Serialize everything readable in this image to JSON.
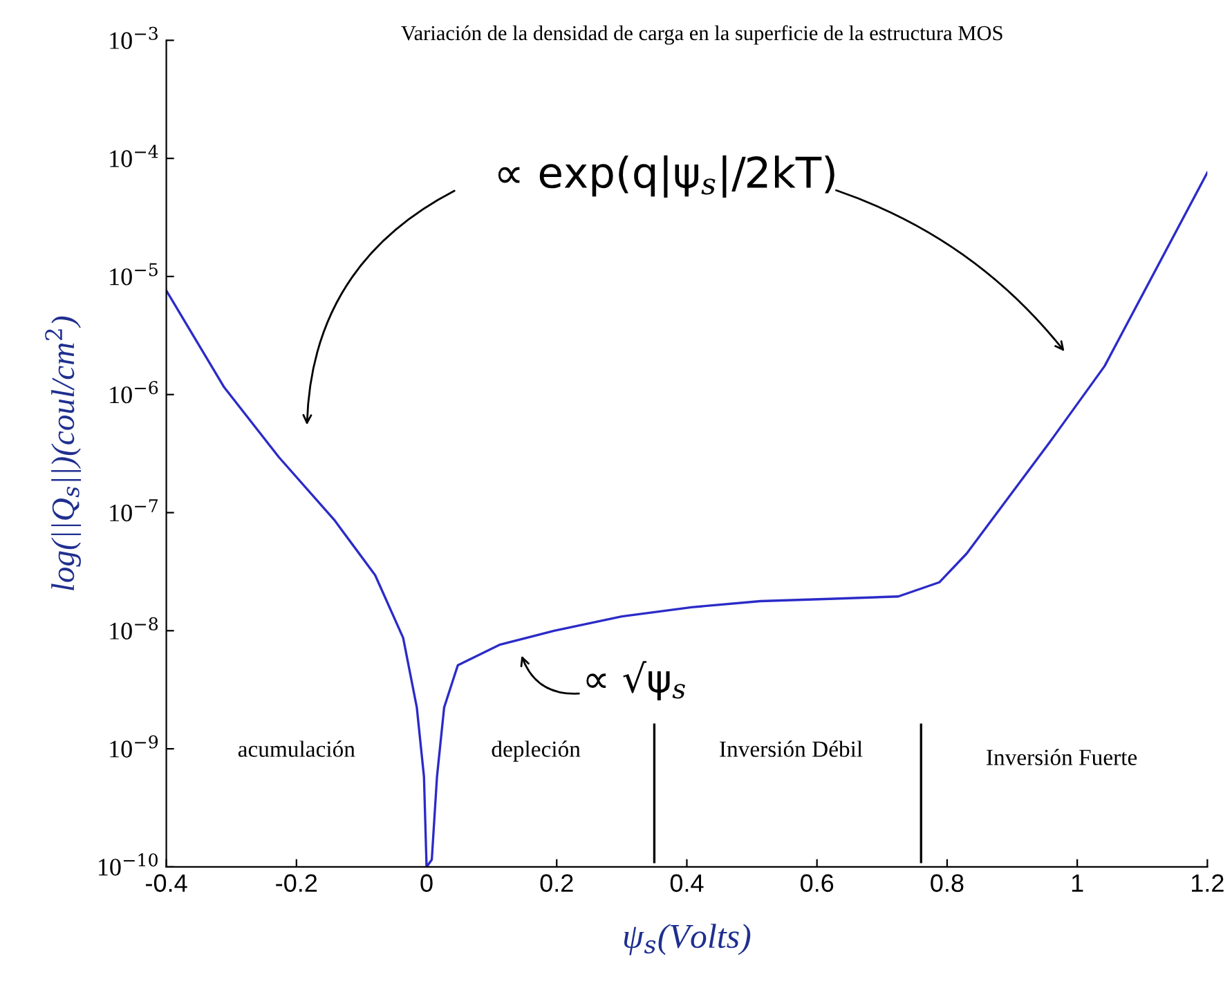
{
  "chart_data": {
    "type": "line",
    "title": "Variación de la densidad de carga en la superficie de la estructura MOS",
    "xlabel": "ψ$_{s}$(Volts)",
    "ylabel": "log(||Q$_{s}$||)(coul/cm$^{2}$)",
    "log": "y",
    "grid": false,
    "legend": false,
    "marker": "none",
    "line_style": "solid",
    "xlim": [
      -0.4,
      1.2
    ],
    "xticks": [
      -0.4,
      -0.2,
      0,
      0.2,
      0.4,
      0.6,
      0.8,
      1,
      1.2
    ],
    "ylim": [
      1e-10,
      0.001
    ],
    "yticks": [
      {
        "value": 1e-10,
        "label": "10$^{−10}$"
      },
      {
        "value": 1e-09,
        "label": "10$^{−9}$"
      },
      {
        "value": 1e-08,
        "label": "10$^{−8}$"
      },
      {
        "value": 1e-07,
        "label": "10$^{−7}$"
      },
      {
        "value": 1e-06,
        "label": "10$^{−6}$"
      },
      {
        "value": 1e-05,
        "label": "10$^{−5}$"
      },
      {
        "value": 0.0001,
        "label": "10$^{−4}$"
      },
      {
        "value": 0.001,
        "label": "10$^{−3}$"
      }
    ],
    "series": [
      {
        "color": "#2b2bc8",
        "x": [
          -0.4,
          -0.311,
          -0.227,
          -0.142,
          -0.079,
          -0.036,
          -0.015,
          -0.004,
          0.0,
          0.008,
          0.016,
          0.027,
          0.048,
          0.112,
          0.196,
          0.3,
          0.407,
          0.513,
          0.619,
          0.725,
          0.788,
          0.83,
          0.957,
          1.042,
          1.2
        ],
        "values": [
          7.6e-06,
          1.15e-06,
          2.95e-07,
          8.7e-08,
          2.95e-08,
          8.7e-09,
          2.24e-09,
          5.8e-10,
          1e-10,
          1.15e-10,
          5.8e-10,
          2.24e-09,
          5.1e-09,
          7.6e-09,
          1e-08,
          1.32e-08,
          1.58e-08,
          1.78e-08,
          1.86e-08,
          1.95e-08,
          2.57e-08,
          4.5e-08,
          3.9e-07,
          1.74e-06,
          7.6e-05
        ]
      },
      {
        "color": "#000000",
        "x": [
          0.35,
          0.35
        ],
        "values": [
          1.6e-09,
          1.1e-10
        ]
      },
      {
        "color": "#000000",
        "x": [
          0.76,
          0.76
        ],
        "values": [
          1.6e-09,
          1.1e-10
        ]
      }
    ],
    "annotations": [
      "∝ exp(q|ψ$_{s}$|/2kT)",
      "∝ √ψ$_{s}$",
      "acumulación",
      "depleción",
      "Inversión Débil",
      "Inversión Fuerte"
    ]
  }
}
